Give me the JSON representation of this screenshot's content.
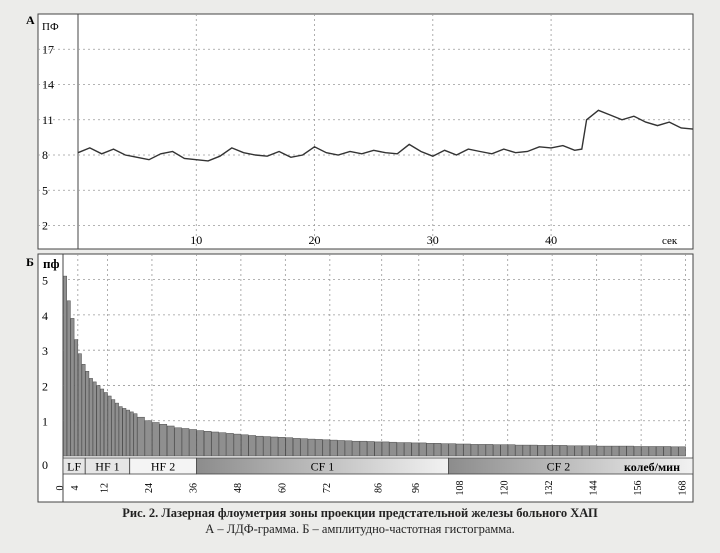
{
  "caption": {
    "title": "Рис. 2. Лазерная флоуметрия зоны проекции предстательной железы больного ХАП",
    "subtitle": "А – ЛДФ-грамма. Б – амплитудно-частотная гистограмма."
  },
  "colors": {
    "background": "#ececea",
    "plot": "#ffffff",
    "line": "#333333",
    "grid": "#9a9a9a"
  },
  "chart_data": [
    {
      "type": "line",
      "panel_label": "А",
      "ylabel": "ПФ",
      "xlabel": "сек",
      "ylim": [
        0,
        20
      ],
      "xlim": [
        0,
        52
      ],
      "yticks": [
        2,
        5,
        8,
        11,
        14,
        17
      ],
      "xticks": [
        10,
        20,
        30,
        40
      ],
      "grid": true,
      "x": [
        0,
        1,
        2,
        3,
        4,
        5,
        6,
        7,
        8,
        9,
        10,
        11,
        12,
        13,
        14,
        15,
        16,
        17,
        18,
        19,
        20,
        21,
        22,
        23,
        24,
        25,
        26,
        27,
        28,
        29,
        30,
        31,
        32,
        33,
        34,
        35,
        36,
        37,
        38,
        39,
        40,
        41,
        42,
        42.6,
        43,
        44,
        45,
        46,
        47,
        48,
        49,
        50,
        51,
        52
      ],
      "y": [
        8.2,
        8.6,
        8.1,
        8.5,
        8.0,
        7.8,
        7.6,
        8.1,
        8.3,
        7.7,
        7.6,
        7.5,
        7.9,
        8.6,
        8.2,
        8.0,
        7.9,
        8.3,
        7.8,
        8.0,
        8.7,
        8.2,
        8.0,
        8.3,
        8.1,
        8.4,
        8.2,
        8.1,
        8.9,
        8.3,
        7.9,
        8.4,
        8.0,
        8.5,
        8.3,
        8.1,
        8.5,
        8.2,
        8.3,
        8.7,
        8.6,
        8.8,
        8.4,
        8.5,
        11.0,
        11.8,
        11.4,
        11.0,
        11.3,
        10.8,
        10.5,
        10.8,
        10.3,
        10.2
      ]
    },
    {
      "type": "bar",
      "panel_label": "Б",
      "ylabel": "пф",
      "xlabel": "колеб/мин",
      "ylim": [
        0,
        5.5
      ],
      "xlim": [
        0,
        170
      ],
      "yticks": [
        0,
        1,
        2,
        3,
        4,
        5
      ],
      "xticks": [
        0,
        4,
        12,
        24,
        36,
        48,
        60,
        72,
        86,
        96,
        108,
        120,
        132,
        144,
        156,
        168
      ],
      "grid": true,
      "bins": [
        1,
        2,
        3,
        4,
        5,
        6,
        7,
        8,
        9,
        10,
        11,
        12,
        13,
        14,
        15,
        16,
        17,
        18,
        19,
        20,
        22,
        24,
        26,
        28,
        30,
        32,
        34,
        36,
        38,
        40,
        42,
        44,
        46,
        48,
        50,
        52,
        54,
        56,
        58,
        60,
        62,
        64,
        66,
        68,
        70,
        72,
        74,
        76,
        78,
        80,
        82,
        84,
        86,
        88,
        90,
        92,
        94,
        96,
        98,
        100,
        102,
        104,
        106,
        108,
        110,
        112,
        114,
        116,
        118,
        120,
        122,
        124,
        126,
        128,
        130,
        132,
        134,
        136,
        138,
        140,
        142,
        144,
        146,
        148,
        150,
        152,
        154,
        156,
        158,
        160,
        162,
        164,
        166,
        168
      ],
      "values": [
        5.1,
        4.4,
        3.9,
        3.3,
        2.9,
        2.6,
        2.4,
        2.2,
        2.1,
        2.0,
        1.9,
        1.8,
        1.7,
        1.6,
        1.5,
        1.4,
        1.35,
        1.3,
        1.25,
        1.2,
        1.1,
        1.0,
        0.95,
        0.9,
        0.85,
        0.8,
        0.78,
        0.75,
        0.72,
        0.7,
        0.68,
        0.66,
        0.64,
        0.62,
        0.6,
        0.58,
        0.56,
        0.55,
        0.54,
        0.53,
        0.52,
        0.5,
        0.49,
        0.48,
        0.47,
        0.46,
        0.45,
        0.44,
        0.43,
        0.42,
        0.42,
        0.41,
        0.4,
        0.4,
        0.39,
        0.38,
        0.38,
        0.37,
        0.37,
        0.36,
        0.36,
        0.35,
        0.35,
        0.34,
        0.34,
        0.33,
        0.33,
        0.33,
        0.32,
        0.32,
        0.32,
        0.31,
        0.31,
        0.31,
        0.3,
        0.3,
        0.3,
        0.3,
        0.29,
        0.29,
        0.29,
        0.29,
        0.28,
        0.28,
        0.28,
        0.28,
        0.28,
        0.27,
        0.27,
        0.27,
        0.27,
        0.27,
        0.26,
        0.26
      ],
      "bands": [
        {
          "label": "LF",
          "from": 0,
          "to": 6
        },
        {
          "label": "HF 1",
          "from": 6,
          "to": 18
        },
        {
          "label": "HF 2",
          "from": 18,
          "to": 36
        },
        {
          "label": "CF 1",
          "from": 36,
          "to": 104
        },
        {
          "label": "CF 2",
          "from": 104,
          "to": 170
        }
      ]
    }
  ]
}
